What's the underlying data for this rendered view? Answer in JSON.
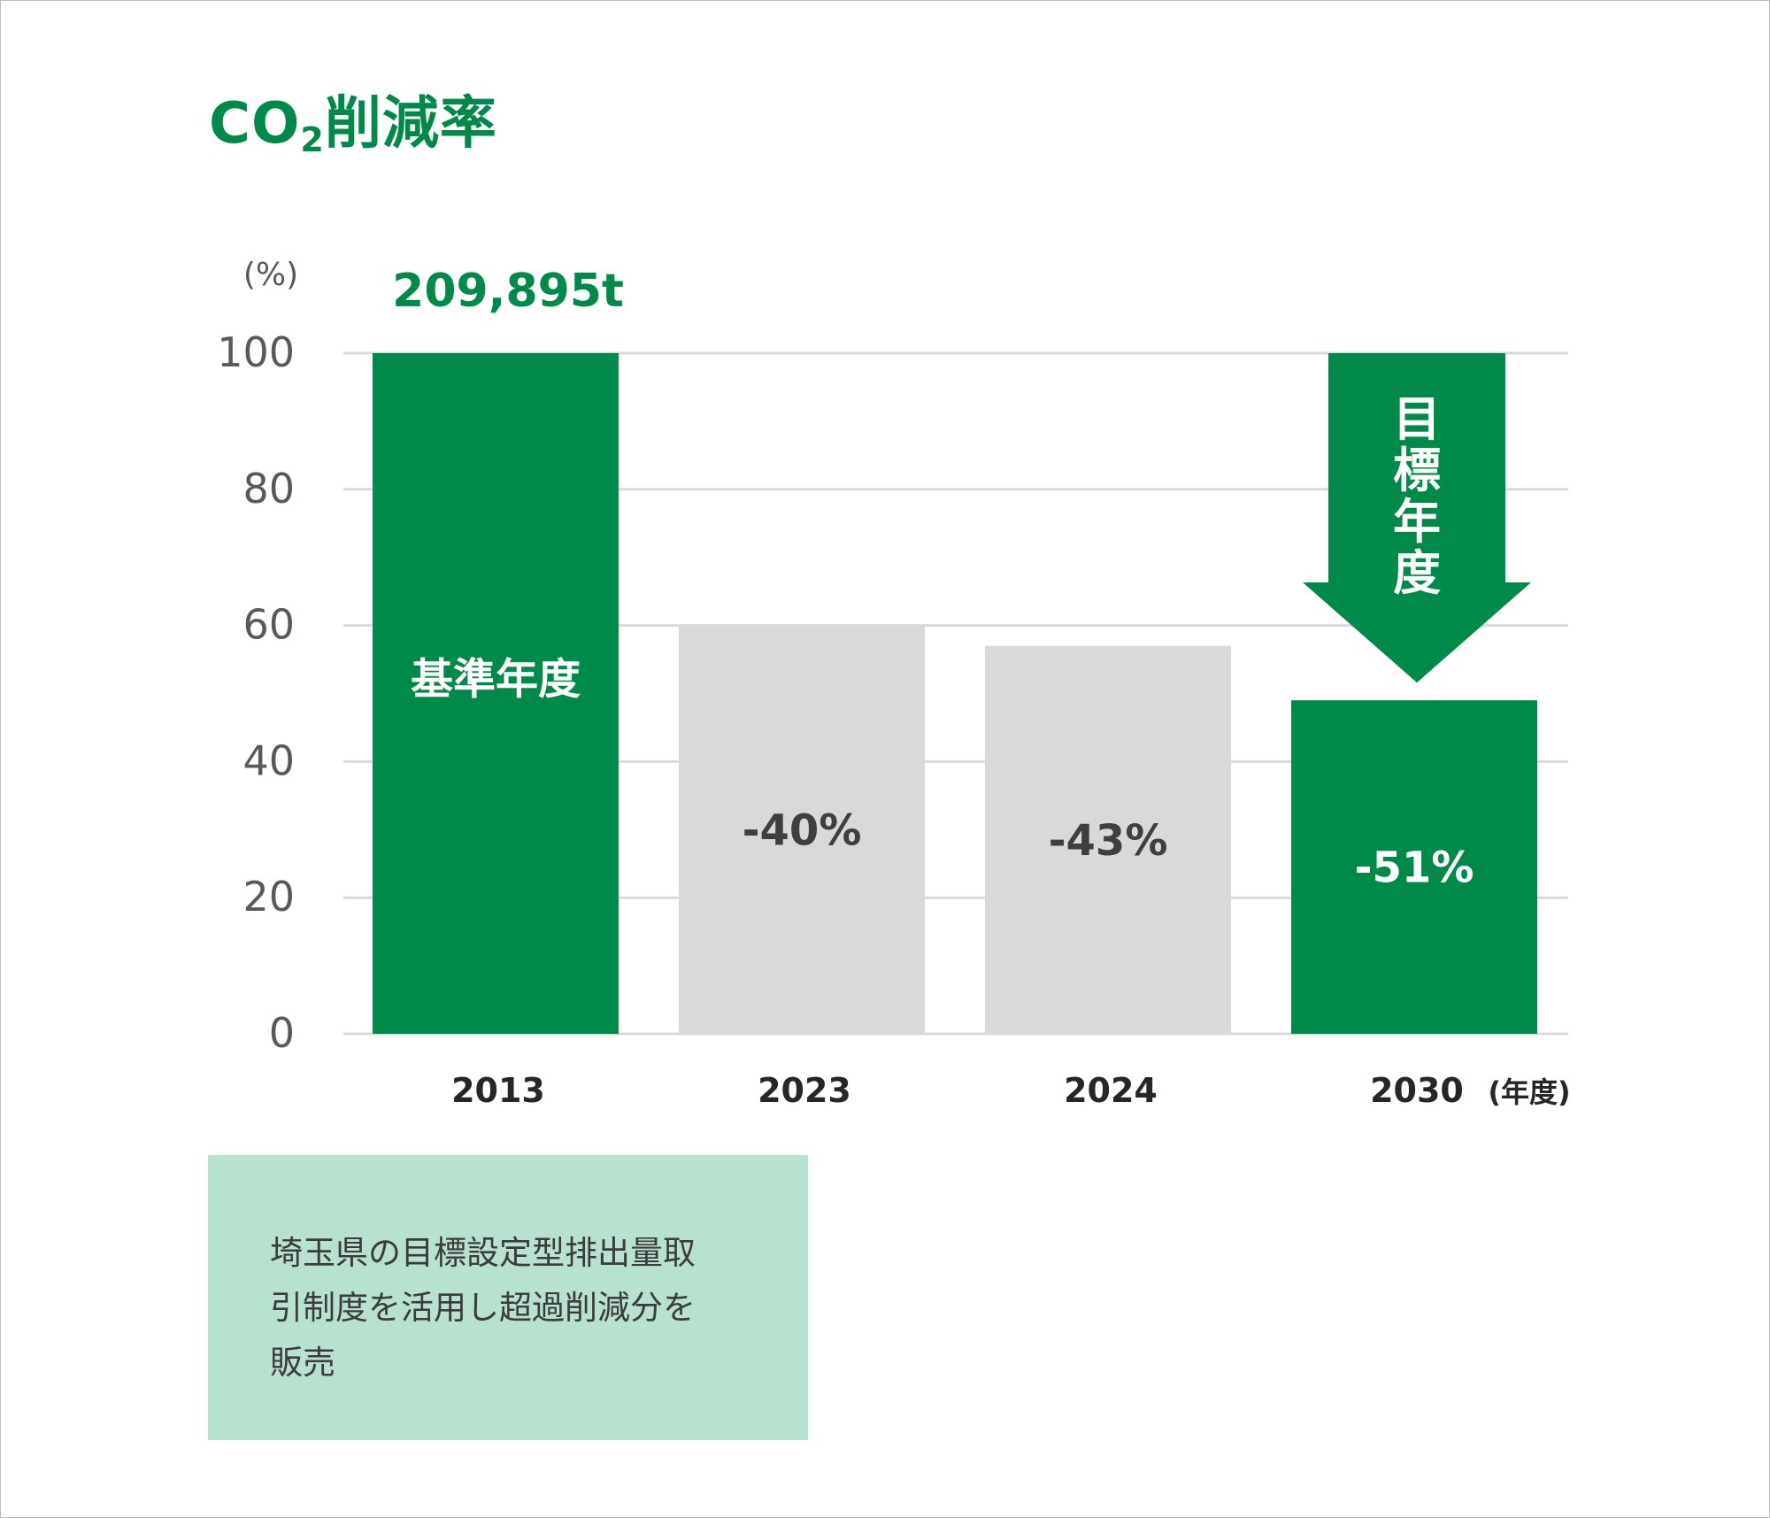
{
  "title": {
    "main": "CO",
    "sub": "2",
    "rest": "削減率"
  },
  "chart_data": {
    "type": "bar",
    "title": "CO2削減率",
    "ylabel": "(%)",
    "xlabel": "(年度)",
    "ylim": [
      0,
      100
    ],
    "yticks": [
      0,
      20,
      40,
      60,
      80,
      100
    ],
    "grid": true,
    "categories": [
      "2013",
      "2023",
      "2024",
      "2030"
    ],
    "values": [
      100,
      60,
      57,
      49
    ],
    "bar_labels": [
      "基準年度",
      "-40%",
      "-43%",
      "-51%"
    ],
    "bar_colors": [
      "#008a4a",
      "#d9d9d9",
      "#d9d9d9",
      "#008a4a"
    ],
    "label_colors": [
      "#ffffff",
      "#3f3f3f",
      "#3f3f3f",
      "#ffffff"
    ],
    "top_annotation": "209,895t",
    "arrow_label": "目標年度"
  },
  "note": {
    "lines": [
      "埼玉県の目標設定型排出量取",
      "引制度を活用し超過削減分を",
      "販売"
    ]
  },
  "colors": {
    "accent": "#008a4a",
    "gray_bar": "#d9d9d9",
    "grid": "#d9d9d9",
    "note_bg": "#b6e2cf"
  }
}
